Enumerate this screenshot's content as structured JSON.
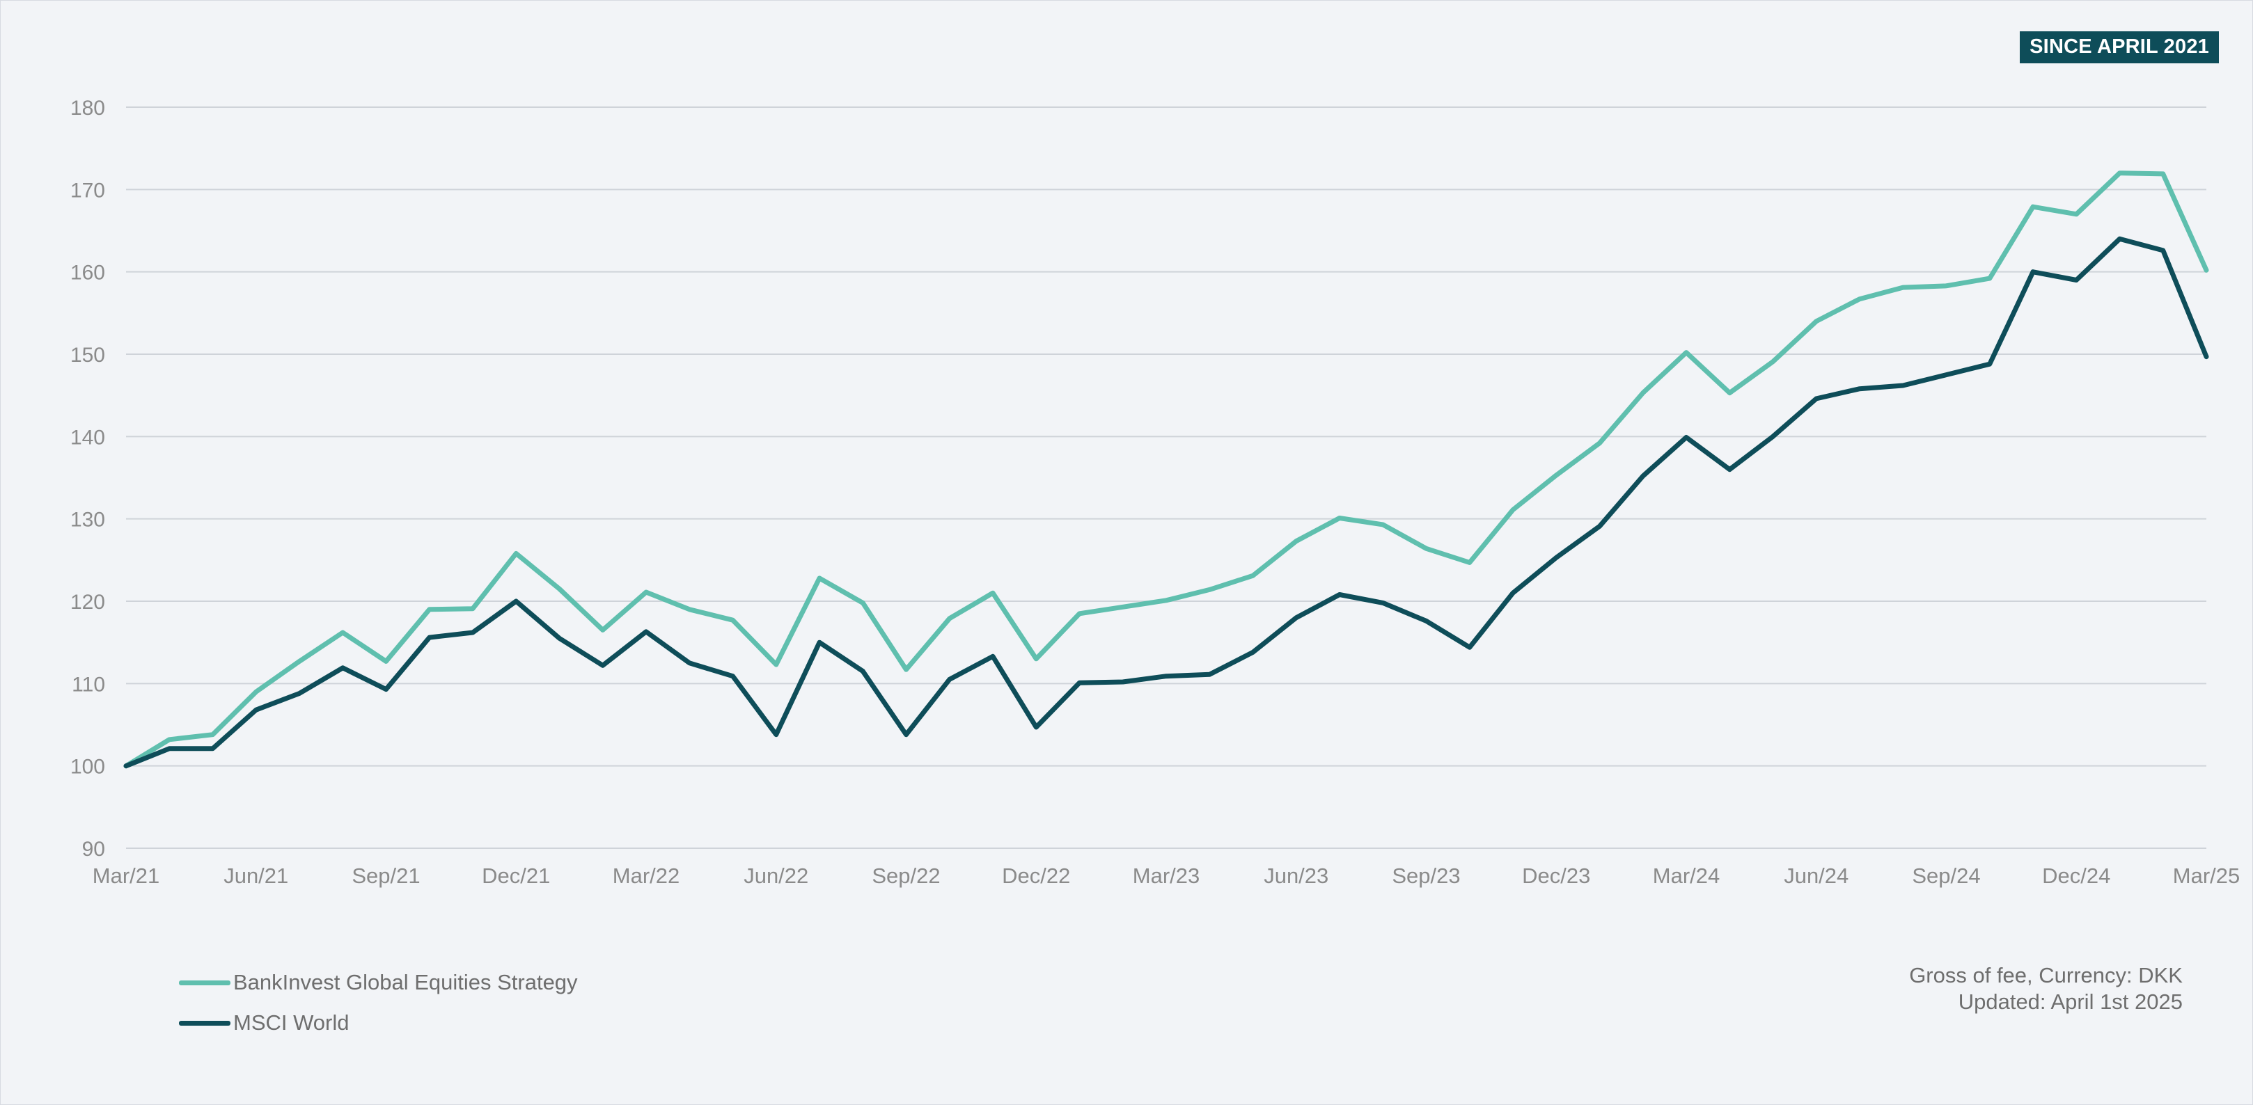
{
  "badge": "SINCE APRIL 2021",
  "notes": {
    "line1": "Gross of fee, Currency: DKK",
    "line2": "Updated: April 1st 2025"
  },
  "chart_data": {
    "type": "line",
    "title": "",
    "xlabel": "",
    "ylabel": "",
    "ylim": [
      90,
      180
    ],
    "yticks": [
      90,
      100,
      110,
      120,
      130,
      140,
      150,
      160,
      170,
      180
    ],
    "grid": true,
    "legend_position": "bottom-left",
    "x": [
      "Mar/21",
      "Apr/21",
      "May/21",
      "Jun/21",
      "Jul/21",
      "Aug/21",
      "Sep/21",
      "Oct/21",
      "Nov/21",
      "Dec/21",
      "Jan/22",
      "Feb/22",
      "Mar/22",
      "Apr/22",
      "May/22",
      "Jun/22",
      "Jul/22",
      "Aug/22",
      "Sep/22",
      "Oct/22",
      "Nov/22",
      "Dec/22",
      "Jan/23",
      "Feb/23",
      "Mar/23",
      "Apr/23",
      "May/23",
      "Jun/23",
      "Jul/23",
      "Aug/23",
      "Sep/23",
      "Oct/23",
      "Nov/23",
      "Dec/23",
      "Jan/24",
      "Feb/24",
      "Mar/24",
      "Apr/24",
      "May/24",
      "Jun/24",
      "Jul/24",
      "Aug/24",
      "Sep/24",
      "Oct/24",
      "Nov/24",
      "Dec/24",
      "Jan/25",
      "Feb/25",
      "Mar/25"
    ],
    "xtick_labels": [
      "Mar/21",
      "Jun/21",
      "Sep/21",
      "Dec/21",
      "Mar/22",
      "Jun/22",
      "Sep/22",
      "Dec/22",
      "Mar/23",
      "Jun/23",
      "Sep/23",
      "Dec/23",
      "Mar/24",
      "Jun/24",
      "Sep/24",
      "Dec/24",
      "Mar/25"
    ],
    "series": [
      {
        "name": "BankInvest Global Equities Strategy",
        "color": "#5fbfae",
        "values": [
          100,
          103.2,
          103.8,
          109,
          112.7,
          116.2,
          112.7,
          119,
          119.1,
          125.8,
          121.5,
          116.5,
          121.1,
          119,
          117.7,
          112.3,
          122.8,
          119.8,
          111.7,
          117.9,
          121,
          113,
          118.5,
          119.3,
          120.1,
          121.4,
          123.1,
          127.3,
          130.1,
          129.3,
          126.4,
          124.7,
          131.1,
          135.3,
          139.2,
          145.3,
          150.2,
          145.3,
          149.1,
          154,
          156.7,
          158.1,
          158.3,
          159.2,
          167.9,
          167,
          172,
          171.9,
          160.2
        ]
      },
      {
        "name": "MSCI World",
        "color": "#0e4d59",
        "values": [
          100,
          102.1,
          102.1,
          106.8,
          108.8,
          111.9,
          109.3,
          115.6,
          116.2,
          120,
          115.5,
          112.2,
          116.3,
          112.5,
          110.9,
          103.8,
          115,
          111.5,
          103.8,
          110.5,
          113.3,
          104.7,
          110.1,
          110.2,
          110.9,
          111.1,
          113.8,
          118,
          120.8,
          119.8,
          117.6,
          114.4,
          121,
          125.3,
          129.1,
          135.2,
          139.9,
          136,
          140,
          144.6,
          145.8,
          146.2,
          147.5,
          148.8,
          160,
          159,
          164,
          162.6,
          149.7
        ]
      }
    ]
  }
}
